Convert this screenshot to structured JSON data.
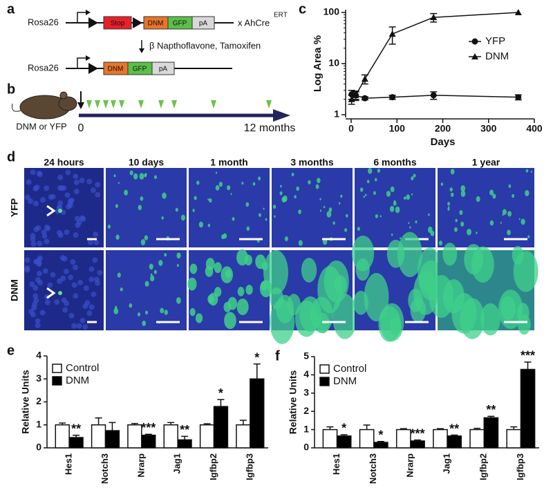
{
  "panel_labels": [
    "a",
    "b",
    "c",
    "d",
    "e",
    "f"
  ],
  "construct_a": {
    "before": {
      "locus": "Rosa26",
      "boxes": [
        "Stop",
        "DNM",
        "GFP",
        "pA"
      ],
      "cross": "x AhCre",
      "cross_superscript": "ERT"
    },
    "treatment": "β Napthoflavone, Tamoxifen",
    "after": {
      "locus": "Rosa26",
      "boxes": [
        "DNM",
        "GFP",
        "pA"
      ]
    }
  },
  "timeline_b": {
    "subject": "DNM or YFP",
    "start": "0",
    "end": "12 months"
  },
  "images_d": {
    "columns": [
      "24 hours",
      "10 days",
      "1 month",
      "3 months",
      "6 months",
      "1 year"
    ],
    "rows": [
      "YFP",
      "DNM"
    ]
  },
  "chart_data": [
    {
      "type": "line",
      "xlabel": "Days",
      "ylabel": "Log Area %",
      "log_y": true,
      "x": [
        1,
        10,
        30,
        90,
        180,
        365
      ],
      "xlim": [
        0,
        400
      ],
      "xticks": [
        0,
        100,
        200,
        300,
        400
      ],
      "ylim": [
        1,
        100
      ],
      "yticks": [
        1,
        10,
        100
      ],
      "legend": "center right",
      "series": [
        {
          "name": "YFP",
          "marker": "circle",
          "color": "#111111",
          "values": [
            2.5,
            2.4,
            2.1,
            2.2,
            2.4,
            2.2
          ],
          "errors": [
            0.5,
            0.4,
            0.15,
            0.2,
            0.4,
            0.25
          ]
        },
        {
          "name": "DNM",
          "marker": "triangle",
          "color": "#111111",
          "values": [
            2.0,
            2.4,
            5,
            38,
            80,
            100
          ],
          "errors": [
            0.4,
            0.5,
            1,
            14,
            15,
            0
          ]
        }
      ]
    },
    {
      "type": "bar",
      "ylabel": "Relative Units",
      "categories": [
        "Hes1",
        "Notch3",
        "Nrarp",
        "Jag1",
        "Igfbp2",
        "Igfbp3"
      ],
      "ylim": [
        0,
        4
      ],
      "yticks": [
        0,
        1,
        2,
        3,
        4
      ],
      "legend": "upper left",
      "series": [
        {
          "name": "Control",
          "color": "#ffffff",
          "values": [
            1,
            1,
            1,
            1,
            1,
            1
          ],
          "errors": [
            0.08,
            0.3,
            0.06,
            0.1,
            0.05,
            0.2
          ]
        },
        {
          "name": "DNM",
          "color": "#000000",
          "values": [
            0.45,
            0.75,
            0.55,
            0.35,
            1.8,
            3.0
          ],
          "errors": [
            0.1,
            0.35,
            0.04,
            0.15,
            0.3,
            0.65
          ]
        }
      ],
      "annotations": [
        "**",
        null,
        "***",
        "**",
        "*",
        "*"
      ]
    },
    {
      "type": "bar",
      "ylabel": "Relative Units",
      "categories": [
        "Hes1",
        "Notch3",
        "Nrarp",
        "Jag1",
        "Igfbp2",
        "Igfbp3"
      ],
      "ylim": [
        0,
        5
      ],
      "yticks": [
        0,
        1,
        2,
        3,
        4,
        5
      ],
      "legend": "upper left",
      "series": [
        {
          "name": "Control",
          "color": "#ffffff",
          "values": [
            1,
            1,
            1,
            1,
            1,
            1
          ],
          "errors": [
            0.15,
            0.25,
            0.05,
            0.05,
            0.07,
            0.15
          ]
        },
        {
          "name": "DNM",
          "color": "#000000",
          "values": [
            0.65,
            0.3,
            0.38,
            0.65,
            1.65,
            4.3
          ],
          "errors": [
            0.07,
            0.05,
            0.05,
            0.05,
            0.08,
            0.4
          ]
        }
      ],
      "annotations": [
        "*",
        "*",
        "***",
        "**",
        "**",
        "***"
      ]
    }
  ]
}
